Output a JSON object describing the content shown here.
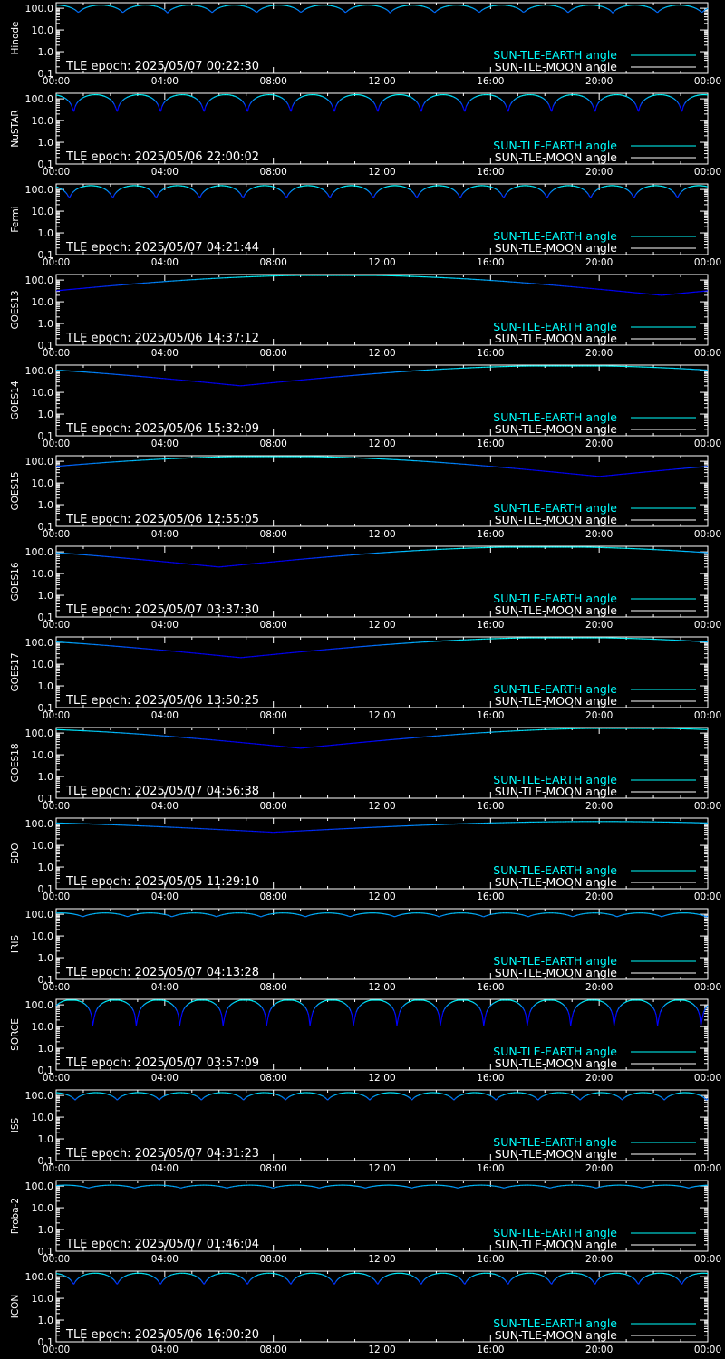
{
  "colors": {
    "background": "#000000",
    "axis": "#ffffff",
    "earth_series": "#00ffff",
    "moon_series": "#ffffff",
    "curve_low": "#0000ff"
  },
  "legend": {
    "earth_label": "SUN-TLE-EARTH angle",
    "moon_label": "SUN-TLE-MOON angle",
    "placement": "bottom-right"
  },
  "chart_data": [
    {
      "type": "line",
      "label": "Hinode",
      "epoch": "TLE epoch: 2025/05/07 00:22:30",
      "x_ticks": [
        "00:00",
        "04:00",
        "08:00",
        "12:00",
        "16:00",
        "20:00",
        "00:00"
      ],
      "y_ticks": [
        "100.0",
        "10.0",
        "1.0",
        "0.1"
      ],
      "y_scale": "log",
      "xlim_hours": [
        0,
        24
      ],
      "ylim": [
        0.1,
        180
      ],
      "series": [
        {
          "shape": "periodic",
          "period_hours": 1.64,
          "phase": 0.5,
          "min": 60,
          "max": 140
        }
      ]
    },
    {
      "type": "line",
      "label": "NuSTAR",
      "epoch": "TLE epoch: 2025/05/06 22:00:02",
      "x_ticks": [
        "00:00",
        "04:00",
        "08:00",
        "12:00",
        "16:00",
        "20:00",
        "00:00"
      ],
      "y_ticks": [
        "100.0",
        "10.0",
        "1.0",
        "0.1"
      ],
      "y_scale": "log",
      "xlim_hours": [
        0,
        24
      ],
      "ylim": [
        0.1,
        180
      ],
      "series": [
        {
          "shape": "periodic",
          "period_hours": 1.6,
          "phase": 0.6,
          "min": 20,
          "max": 155
        }
      ]
    },
    {
      "type": "line",
      "label": "Fermi",
      "epoch": "TLE epoch: 2025/05/07 04:21:44",
      "x_ticks": [
        "00:00",
        "04:00",
        "08:00",
        "12:00",
        "16:00",
        "20:00",
        "00:00"
      ],
      "y_ticks": [
        "100.0",
        "10.0",
        "1.0",
        "0.1"
      ],
      "y_scale": "log",
      "xlim_hours": [
        0,
        24
      ],
      "ylim": [
        0.1,
        180
      ],
      "series": [
        {
          "shape": "periodic",
          "period_hours": 1.6,
          "phase": 0.7,
          "min": 35,
          "max": 150
        }
      ]
    },
    {
      "type": "line",
      "label": "GOES13",
      "epoch": "TLE epoch: 2025/05/06 14:37:12",
      "x_ticks": [
        "00:00",
        "04:00",
        "08:00",
        "12:00",
        "16:00",
        "20:00",
        "00:00"
      ],
      "y_ticks": [
        "100.0",
        "10.0",
        "1.0",
        "0.1"
      ],
      "y_scale": "log",
      "xlim_hours": [
        0,
        24
      ],
      "ylim": [
        0.1,
        180
      ],
      "series": [
        {
          "shape": "daily",
          "min_hour": 22.3,
          "min": 20,
          "max": 170
        }
      ]
    },
    {
      "type": "line",
      "label": "GOES14",
      "epoch": "TLE epoch: 2025/05/06 15:32:09",
      "x_ticks": [
        "00:00",
        "04:00",
        "08:00",
        "12:00",
        "16:00",
        "20:00",
        "00:00"
      ],
      "y_ticks": [
        "100.0",
        "10.0",
        "1.0",
        "0.1"
      ],
      "y_scale": "log",
      "xlim_hours": [
        0,
        24
      ],
      "ylim": [
        0.1,
        180
      ],
      "series": [
        {
          "shape": "daily",
          "min_hour": 6.8,
          "min": 20,
          "max": 170
        }
      ]
    },
    {
      "type": "line",
      "label": "GOES15",
      "epoch": "TLE epoch: 2025/05/06 12:55:05",
      "x_ticks": [
        "00:00",
        "04:00",
        "08:00",
        "12:00",
        "16:00",
        "20:00",
        "00:00"
      ],
      "y_ticks": [
        "100.0",
        "10.0",
        "1.0",
        "0.1"
      ],
      "y_scale": "log",
      "xlim_hours": [
        0,
        24
      ],
      "ylim": [
        0.1,
        180
      ],
      "series": [
        {
          "shape": "daily",
          "min_hour": 20.0,
          "min": 20,
          "max": 170
        }
      ]
    },
    {
      "type": "line",
      "label": "GOES16",
      "epoch": "TLE epoch: 2025/05/07 03:37:30",
      "x_ticks": [
        "00:00",
        "04:00",
        "08:00",
        "12:00",
        "16:00",
        "20:00",
        "00:00"
      ],
      "y_ticks": [
        "100.0",
        "10.0",
        "1.0",
        "0.1"
      ],
      "y_scale": "log",
      "xlim_hours": [
        0,
        24
      ],
      "ylim": [
        0.1,
        180
      ],
      "series": [
        {
          "shape": "daily",
          "min_hour": 6.0,
          "min": 20,
          "max": 170
        }
      ]
    },
    {
      "type": "line",
      "label": "GOES17",
      "epoch": "TLE epoch: 2025/05/06 13:50:25",
      "x_ticks": [
        "00:00",
        "04:00",
        "08:00",
        "12:00",
        "16:00",
        "20:00",
        "00:00"
      ],
      "y_ticks": [
        "100.0",
        "10.0",
        "1.0",
        "0.1"
      ],
      "y_scale": "log",
      "xlim_hours": [
        0,
        24
      ],
      "ylim": [
        0.1,
        180
      ],
      "series": [
        {
          "shape": "daily",
          "min_hour": 6.8,
          "min": 20,
          "max": 170
        }
      ]
    },
    {
      "type": "line",
      "label": "GOES18",
      "epoch": "TLE epoch: 2025/05/07 04:56:38",
      "x_ticks": [
        "00:00",
        "04:00",
        "08:00",
        "12:00",
        "16:00",
        "20:00",
        "00:00"
      ],
      "y_ticks": [
        "100.0",
        "10.0",
        "1.0",
        "0.1"
      ],
      "y_scale": "log",
      "xlim_hours": [
        0,
        24
      ],
      "ylim": [
        0.1,
        180
      ],
      "series": [
        {
          "shape": "daily",
          "min_hour": 9.0,
          "min": 20,
          "max": 170
        }
      ]
    },
    {
      "type": "line",
      "label": "SDO",
      "epoch": "TLE epoch: 2025/05/05 11:29:10",
      "x_ticks": [
        "00:00",
        "04:00",
        "08:00",
        "12:00",
        "16:00",
        "20:00",
        "00:00"
      ],
      "y_ticks": [
        "100.0",
        "10.0",
        "1.0",
        "0.1"
      ],
      "y_scale": "log",
      "xlim_hours": [
        0,
        24
      ],
      "ylim": [
        0.1,
        180
      ],
      "series": [
        {
          "shape": "daily",
          "min_hour": 8.0,
          "min": 40,
          "max": 125
        }
      ]
    },
    {
      "type": "line",
      "label": "IRIS",
      "epoch": "TLE epoch: 2025/05/07 04:13:28",
      "x_ticks": [
        "00:00",
        "04:00",
        "08:00",
        "12:00",
        "16:00",
        "20:00",
        "00:00"
      ],
      "y_ticks": [
        "100.0",
        "10.0",
        "1.0",
        "0.1"
      ],
      "y_scale": "log",
      "xlim_hours": [
        0,
        24
      ],
      "ylim": [
        0.1,
        180
      ],
      "series": [
        {
          "shape": "periodic",
          "period_hours": 1.64,
          "phase": 0.4,
          "min": 75,
          "max": 115
        }
      ]
    },
    {
      "type": "line",
      "label": "SORCE",
      "epoch": "TLE epoch: 2025/05/07 03:57:09",
      "x_ticks": [
        "00:00",
        "04:00",
        "08:00",
        "12:00",
        "16:00",
        "20:00",
        "00:00"
      ],
      "y_ticks": [
        "100.0",
        "10.0",
        "1.0",
        "0.1"
      ],
      "y_scale": "log",
      "xlim_hours": [
        0,
        24
      ],
      "ylim": [
        0.1,
        180
      ],
      "series": [
        {
          "shape": "periodic",
          "period_hours": 1.6,
          "phase": 0.15,
          "min": 4,
          "max": 170
        }
      ]
    },
    {
      "type": "line",
      "label": "ISS",
      "epoch": "TLE epoch: 2025/05/07 04:31:23",
      "x_ticks": [
        "00:00",
        "04:00",
        "08:00",
        "12:00",
        "16:00",
        "20:00",
        "00:00"
      ],
      "y_ticks": [
        "100.0",
        "10.0",
        "1.0",
        "0.1"
      ],
      "y_scale": "log",
      "xlim_hours": [
        0,
        24
      ],
      "ylim": [
        0.1,
        180
      ],
      "series": [
        {
          "shape": "periodic",
          "period_hours": 1.55,
          "phase": 0.55,
          "min": 60,
          "max": 135
        }
      ]
    },
    {
      "type": "line",
      "label": "Proba-2",
      "epoch": "TLE epoch: 2025/05/07 01:46:04",
      "x_ticks": [
        "00:00",
        "04:00",
        "08:00",
        "12:00",
        "16:00",
        "20:00",
        "00:00"
      ],
      "y_ticks": [
        "100.0",
        "10.0",
        "1.0",
        "0.1"
      ],
      "y_scale": "log",
      "xlim_hours": [
        0,
        24
      ],
      "ylim": [
        0.1,
        180
      ],
      "series": [
        {
          "shape": "periodic",
          "period_hours": 1.7,
          "phase": 0.3,
          "min": 80,
          "max": 110
        }
      ]
    },
    {
      "type": "line",
      "label": "ICON",
      "epoch": "TLE epoch: 2025/05/06 16:00:20",
      "x_ticks": [
        "00:00",
        "04:00",
        "08:00",
        "12:00",
        "16:00",
        "20:00",
        "00:00"
      ],
      "y_ticks": [
        "100.0",
        "10.0",
        "1.0",
        "0.1"
      ],
      "y_scale": "log",
      "xlim_hours": [
        0,
        24
      ],
      "ylim": [
        0.1,
        180
      ],
      "series": [
        {
          "shape": "periodic",
          "period_hours": 1.6,
          "phase": 0.6,
          "min": 40,
          "max": 145
        }
      ]
    }
  ]
}
